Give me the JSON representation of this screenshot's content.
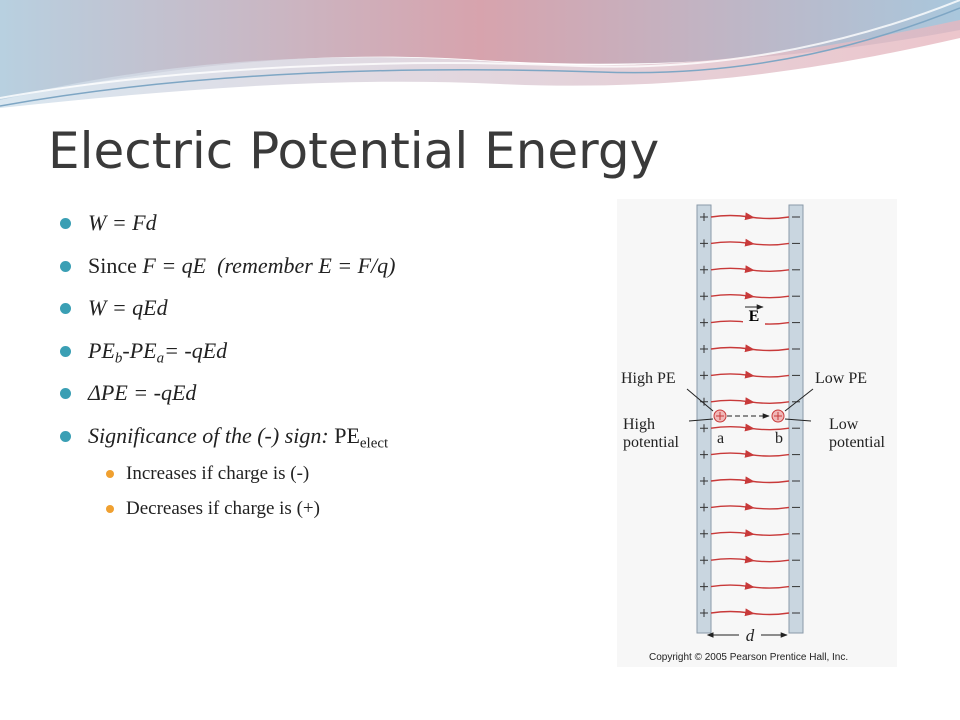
{
  "slide": {
    "title": "Electric Potential Energy",
    "bullets": [
      {
        "level": 1,
        "runs": [
          {
            "text": "W = Fd",
            "style": "italic"
          }
        ]
      },
      {
        "level": 1,
        "runs": [
          {
            "text": "Since ",
            "style": "normal"
          },
          {
            "text": "F = qE  (remember E = F/q)",
            "style": "italic"
          }
        ]
      },
      {
        "level": 1,
        "runs": [
          {
            "text": "W = qEd",
            "style": "italic"
          }
        ]
      },
      {
        "level": 1,
        "runs": [
          {
            "text": "PE",
            "style": "italic"
          },
          {
            "text": "b",
            "style": "italic-sub"
          },
          {
            "text": "-PE",
            "style": "italic"
          },
          {
            "text": "a",
            "style": "italic-sub"
          },
          {
            "text": "= -qEd",
            "style": "italic"
          }
        ]
      },
      {
        "level": 1,
        "runs": [
          {
            "text": "ΔPE = -qEd",
            "style": "italic"
          }
        ]
      },
      {
        "level": 1,
        "runs": [
          {
            "text": "Significance of the (-) sign: ",
            "style": "italic"
          },
          {
            "text": "PE",
            "style": "normal"
          },
          {
            "text": "elect",
            "style": "sub"
          }
        ]
      },
      {
        "level": 2,
        "runs": [
          {
            "text": "Increases if charge is (-)",
            "style": "normal"
          }
        ]
      },
      {
        "level": 2,
        "runs": [
          {
            "text": "Decreases if charge is (+)",
            "style": "normal"
          }
        ]
      }
    ]
  },
  "figure": {
    "field_label": "E",
    "high_pe": "High PE",
    "low_pe": "Low PE",
    "high_potential": [
      "High",
      "potential"
    ],
    "low_potential": [
      "Low",
      "potential"
    ],
    "point_a": "a",
    "point_b": "b",
    "distance": "d",
    "copyright": "Copyright © 2005 Pearson Prentice Hall, Inc."
  }
}
